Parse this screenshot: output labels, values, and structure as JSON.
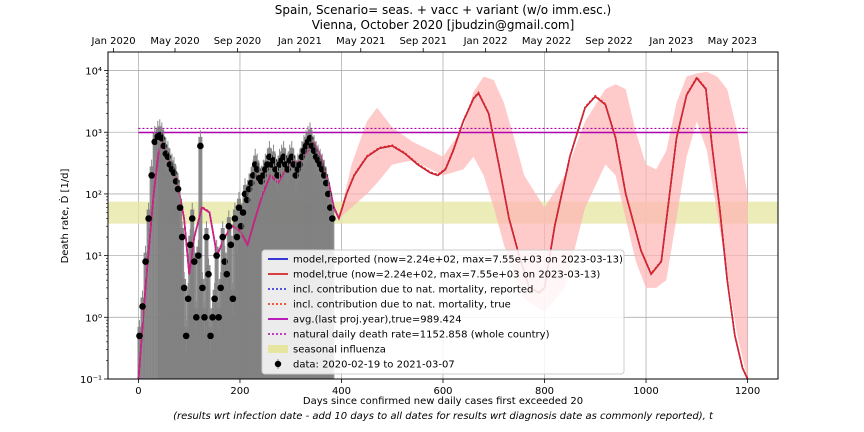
{
  "chart_data": {
    "type": "line",
    "title_line1": "Spain, Scenario= seas. + vacc + variant (w/o imm.esc.)",
    "title_line2": "Vienna, October 2020 [jbudzin@gmail.com]",
    "xlabel_line1": "Days since confirmed new daily cases first exceeded 20",
    "xlabel_line2": "(results wrt infection date - add 10 days to all dates for results wrt diagnosis date as commonly reported), t",
    "ylabel": "Death rate, Ḋ [1/d]",
    "yscale": "log",
    "xlim": [
      -60,
      1260
    ],
    "ylim": [
      0.1,
      20000
    ],
    "x_ticks": [
      0,
      200,
      400,
      600,
      800,
      1000,
      1200
    ],
    "x_tick_labels": [
      "0",
      "200",
      "400",
      "600",
      "800",
      "1000",
      "1200"
    ],
    "y_ticks": [
      0.1,
      1,
      10,
      100,
      1000,
      10000
    ],
    "y_tick_labels": [
      "10⁻¹",
      "10⁰",
      "10¹",
      "10²",
      "10³",
      "10⁴"
    ],
    "top_axis_ticks": [
      -49,
      72,
      195,
      318,
      438,
      561,
      684,
      804,
      927,
      1050,
      1170
    ],
    "top_axis_labels": [
      "Jan 2020",
      "May 2020",
      "Sep 2020",
      "Jan 2021",
      "May 2021",
      "Sep 2021",
      "Jan 2022",
      "May 2022",
      "Sep 2022",
      "Jan 2023",
      "May 2023"
    ],
    "grid": true,
    "legend_placement": "lower-center",
    "legend": [
      {
        "label": "model,reported (now=2.24e+02, max=7.55e+03 on 2023-03-13)",
        "style": "solid",
        "color": "#1f1fd6"
      },
      {
        "label": "model,true (now=2.24e+02, max=7.55e+03 on 2023-03-13)",
        "style": "solid",
        "color": "#d62728"
      },
      {
        "label": "incl. contribution due to nat. mortality, reported",
        "style": "dotted",
        "color": "#1f1fd6"
      },
      {
        "label": "incl. contribution due to nat. mortality, true",
        "style": "dotted",
        "color": "#ff2200"
      },
      {
        "label": "avg.(last proj.year),true=989.424",
        "style": "solid",
        "color": "#b000b0"
      },
      {
        "label": "natural daily death rate=1152.858 (whole country)",
        "style": "dotted",
        "color": "#b000b0"
      },
      {
        "label": "seasonal influenza",
        "style": "band",
        "color": "#e0e090"
      },
      {
        "label": "data: 2020-02-19 to 2021-03-07",
        "style": "marker",
        "color": "#000000"
      }
    ],
    "hlines": {
      "avg_true": 989.424,
      "natural_rate": 1152.858
    },
    "influenza_band": [
      33,
      75
    ],
    "model_series": {
      "x": [
        0,
        15,
        30,
        40,
        48,
        60,
        75,
        90,
        100,
        110,
        125,
        140,
        155,
        170,
        185,
        200,
        215,
        230,
        245,
        260,
        275,
        290,
        305,
        315,
        325,
        335,
        345,
        360,
        375,
        385,
        395,
        410,
        425,
        450,
        475,
        500,
        525,
        550,
        575,
        590,
        605,
        620,
        640,
        660,
        670,
        690,
        710,
        730,
        750,
        770,
        790,
        800,
        820,
        850,
        880,
        900,
        920,
        940,
        960,
        990,
        1010,
        1030,
        1045,
        1060,
        1080,
        1100,
        1118,
        1130,
        1145,
        1160,
        1175,
        1190,
        1200
      ],
      "y": [
        0.1,
        4,
        100,
        500,
        700,
        350,
        180,
        40,
        5,
        20,
        60,
        50,
        10,
        20,
        30,
        25,
        15,
        40,
        100,
        200,
        150,
        250,
        350,
        300,
        400,
        500,
        700,
        400,
        150,
        60,
        40,
        100,
        200,
        400,
        550,
        600,
        450,
        300,
        220,
        200,
        250,
        500,
        1500,
        3500,
        4300,
        2000,
        300,
        40,
        10,
        3,
        2.5,
        3,
        30,
        400,
        2500,
        3800,
        2800,
        800,
        100,
        12,
        5,
        8,
        80,
        800,
        4000,
        7550,
        5000,
        600,
        60,
        4,
        0.5,
        0.15,
        0.1
      ]
    },
    "uncertainty_band": {
      "x": [
        395,
        420,
        450,
        470,
        500,
        540,
        600,
        640,
        660,
        680,
        700,
        720,
        740,
        760,
        800,
        840,
        880,
        920,
        940,
        960,
        980,
        1000,
        1020,
        1040,
        1060,
        1080,
        1100,
        1120,
        1140,
        1160,
        1180,
        1200
      ],
      "lower": [
        40,
        60,
        100,
        150,
        300,
        350,
        200,
        250,
        400,
        200,
        60,
        15,
        5,
        2,
        1.2,
        3,
        60,
        300,
        200,
        40,
        8,
        3,
        3,
        4,
        40,
        400,
        1500,
        500,
        50,
        5,
        0.5,
        0.1
      ],
      "upper": [
        40,
        300,
        1500,
        2500,
        1200,
        700,
        400,
        1200,
        4500,
        8000,
        7000,
        3000,
        800,
        200,
        60,
        200,
        1500,
        5000,
        6000,
        5000,
        1000,
        300,
        250,
        500,
        3000,
        8000,
        9000,
        9500,
        8000,
        5000,
        1000,
        100
      ]
    },
    "data_points": {
      "x": [
        2,
        8,
        14,
        20,
        26,
        32,
        38,
        42,
        46,
        50,
        54,
        58,
        62,
        66,
        70,
        74,
        78,
        82,
        86,
        90,
        94,
        98,
        102,
        106,
        110,
        114,
        118,
        122,
        126,
        130,
        134,
        138,
        142,
        146,
        150,
        154,
        158,
        162,
        166,
        170,
        174,
        178,
        182,
        186,
        190,
        194,
        198,
        202,
        206,
        210,
        214,
        218,
        222,
        226,
        230,
        234,
        238,
        242,
        246,
        250,
        254,
        258,
        262,
        266,
        270,
        274,
        278,
        282,
        286,
        290,
        294,
        298,
        302,
        306,
        310,
        314,
        318,
        322,
        326,
        330,
        334,
        338,
        342,
        346,
        350,
        354,
        358,
        362,
        366,
        370,
        374,
        378,
        382
      ],
      "y": [
        0.5,
        1.5,
        8,
        40,
        200,
        700,
        850,
        900,
        800,
        600,
        450,
        400,
        300,
        250,
        220,
        160,
        120,
        60,
        20,
        3,
        0.5,
        2,
        15,
        40,
        8,
        1,
        10,
        600,
        3,
        1,
        20,
        5,
        0.5,
        1,
        2,
        10,
        1,
        3,
        20,
        8,
        5,
        30,
        15,
        2,
        40,
        20,
        60,
        30,
        50,
        100,
        80,
        120,
        150,
        200,
        300,
        250,
        180,
        160,
        200,
        250,
        300,
        400,
        300,
        350,
        250,
        200,
        300,
        350,
        400,
        300,
        250,
        350,
        400,
        300,
        200,
        250,
        300,
        400,
        500,
        600,
        700,
        800,
        600,
        500,
        400,
        350,
        300,
        250,
        200,
        150,
        100,
        60,
        40
      ]
    }
  }
}
